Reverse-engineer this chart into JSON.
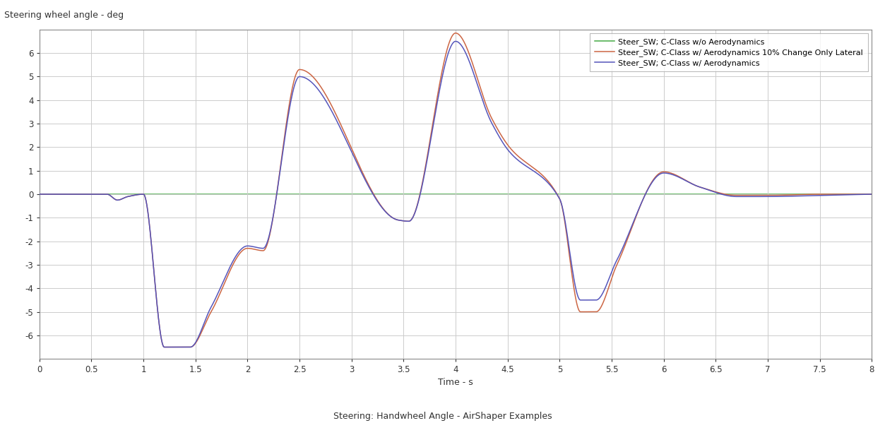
{
  "title_ylabel": "Steering wheel angle - deg",
  "xlabel": "Time - s",
  "bottom_label": "Steering: Handwheel Angle - AirShaper Examples",
  "xlim": [
    0,
    8.0
  ],
  "ylim": [
    -7,
    7
  ],
  "yticks": [
    -6,
    -5,
    -4,
    -3,
    -2,
    -1,
    0,
    1,
    2,
    3,
    4,
    5,
    6
  ],
  "xticks": [
    0,
    0.5,
    1.0,
    1.5,
    2.0,
    2.5,
    3.0,
    3.5,
    4.0,
    4.5,
    5.0,
    5.5,
    6.0,
    6.5,
    7.0,
    7.5,
    8.0
  ],
  "line1_color": "#5555bb",
  "line2_color": "#cc6644",
  "line3_color": "#44aa44",
  "line1_label": "Steer_SW; C-Class w/ Aerodynamics",
  "line2_label": "Steer_SW; C-Class w/ Aerodynamics 10% Change Only Lateral",
  "line3_label": "Steer_SW; C-Class w/o Aerodynamics",
  "background_color": "#ffffff",
  "grid_color": "#cccccc"
}
